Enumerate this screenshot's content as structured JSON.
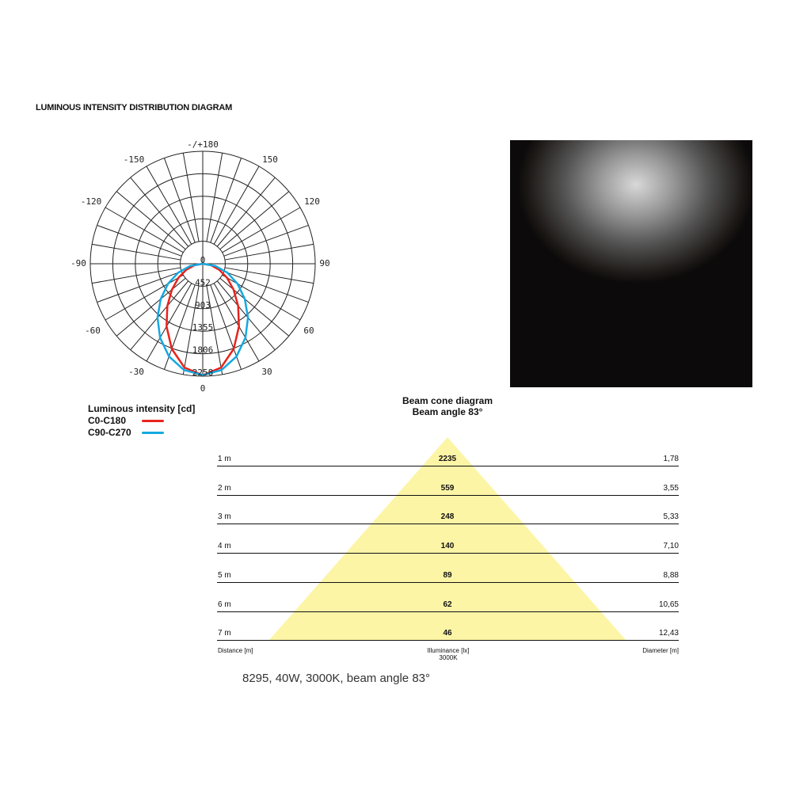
{
  "title": "LUMINOUS INTENSITY DISTRIBUTION DIAGRAM",
  "polar": {
    "angle_labels": {
      "top": "-/+180",
      "m150": "-150",
      "p150": "150",
      "m120": "-120",
      "p120": "120",
      "m90": "-90",
      "p90": "90",
      "m60": "-60",
      "p60": "60",
      "m30": "-30",
      "p30": "30",
      "bottom": "0"
    },
    "center_label": "0",
    "ring_labels": [
      "452",
      "903",
      "1355",
      "1806",
      "2258"
    ],
    "rmax": 2258,
    "chart_data": {
      "type": "polar",
      "angles_deg": [
        0,
        10,
        20,
        30,
        40,
        50,
        60,
        70,
        80,
        90
      ],
      "symmetric": true,
      "series": [
        {
          "name": "C0-C180",
          "color": "#e8231d",
          "values": [
            2235,
            2117,
            1819,
            1454,
            1107,
            808,
            561,
            352,
            170,
            0
          ]
        },
        {
          "name": "C90-C270",
          "color": "#14a9e1",
          "values": [
            2235,
            2167,
            1981,
            1715,
            1412,
            1103,
            806,
            526,
            259,
            0
          ]
        }
      ]
    }
  },
  "legend": {
    "title": "Luminous intensity [cd]",
    "items": [
      {
        "label": "C0-C180",
        "color": "#e8231d"
      },
      {
        "label": "C90-C270",
        "color": "#14a9e1"
      }
    ]
  },
  "cone": {
    "title": "Beam cone diagram",
    "subtitle": "Beam angle 83°",
    "fill": "#fdf5a6",
    "rows": [
      {
        "distance": "1 m",
        "illuminance": "2235",
        "diameter": "1,78"
      },
      {
        "distance": "2 m",
        "illuminance": "559",
        "diameter": "3,55"
      },
      {
        "distance": "3 m",
        "illuminance": "248",
        "diameter": "5,33"
      },
      {
        "distance": "4 m",
        "illuminance": "140",
        "diameter": "7,10"
      },
      {
        "distance": "5 m",
        "illuminance": "89",
        "diameter": "8,88"
      },
      {
        "distance": "6 m",
        "illuminance": "62",
        "diameter": "10,65"
      },
      {
        "distance": "7 m",
        "illuminance": "46",
        "diameter": "12,43"
      }
    ],
    "footer": {
      "distance": "Distance [m]",
      "illuminance": "Illuminance [lx]",
      "cct": "3000K",
      "diameter": "Diameter [m]"
    }
  },
  "caption": "8295, 40W, 3000K, beam angle 83°"
}
